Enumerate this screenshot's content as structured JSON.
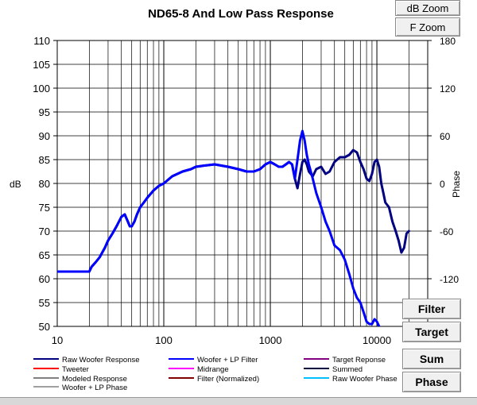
{
  "buttons": {
    "db_zoom": "dB Zoom",
    "f_zoom": "F Zoom",
    "filter": "Filter",
    "target": "Target",
    "sum": "Sum",
    "phase": "Phase"
  },
  "chart_data": {
    "type": "line",
    "title": "ND65-8  And Low Pass Response",
    "xlabel": "",
    "ylabel": "dB",
    "y2label": "Phase",
    "x_scale": "log",
    "xlim": [
      10,
      30000
    ],
    "ylim": [
      50,
      110
    ],
    "y2lim": [
      -180,
      180
    ],
    "grid": true,
    "x_ticks": [
      10,
      100,
      1000,
      10000
    ],
    "x_tick_labels": [
      "10",
      "100",
      "1000",
      "10000"
    ],
    "y_ticks": [
      50,
      55,
      60,
      65,
      70,
      75,
      80,
      85,
      90,
      95,
      100,
      105,
      110
    ],
    "y2_ticks": [
      -120,
      -60,
      0,
      60,
      120,
      180
    ],
    "legend_position": "bottom",
    "colors": {
      "raw_woofer": "#000080",
      "woofer_lp": "#0000ff",
      "target": "#800080",
      "tweeter": "#ff0000",
      "midrange": "#ff00ff",
      "summed": "#000040",
      "modeled": "#808080",
      "filter_norm": "#800000",
      "raw_phase": "#00c0ff",
      "woofer_lp_phase": "#a0a0a0"
    },
    "legend": [
      {
        "name": "Raw Woofer Response",
        "color_key": "raw_woofer"
      },
      {
        "name": "Woofer + LP Filter",
        "color_key": "woofer_lp"
      },
      {
        "name": "Target Reponse",
        "color_key": "target"
      },
      {
        "name": "Tweeter",
        "color_key": "tweeter"
      },
      {
        "name": "Midrange",
        "color_key": "midrange"
      },
      {
        "name": "Summed",
        "color_key": "summed"
      },
      {
        "name": "Modeled Response",
        "color_key": "modeled"
      },
      {
        "name": "Filter (Normalized)",
        "color_key": "filter_norm"
      },
      {
        "name": "Raw Woofer Phase",
        "color_key": "raw_phase"
      },
      {
        "name": "Woofer + LP  Phase",
        "color_key": "woofer_lp_phase"
      }
    ],
    "series": [
      {
        "name": "Raw Woofer Response",
        "color_key": "raw_woofer",
        "width": 3,
        "x": [
          10,
          15,
          20,
          21,
          23,
          25,
          28,
          30,
          33,
          36,
          40,
          43,
          46,
          48,
          50,
          53,
          56,
          60,
          65,
          70,
          80,
          90,
          100,
          120,
          150,
          180,
          200,
          250,
          300,
          400,
          500,
          600,
          700,
          800,
          900,
          1000,
          1100,
          1200,
          1300,
          1400,
          1500,
          1600,
          1700,
          1800,
          1900,
          2000,
          2100,
          2200,
          2300,
          2500,
          2700,
          3000,
          3300,
          3600,
          4000,
          4500,
          5000,
          5500,
          6000,
          6500,
          7000,
          7500,
          8000,
          8500,
          9000,
          9500,
          10000,
          10500,
          11000,
          11500,
          12000,
          13000,
          14000,
          15000,
          16000,
          17000,
          18000,
          19000,
          20000
        ],
        "values": [
          61.5,
          61.5,
          61.5,
          62.5,
          63.5,
          64.5,
          66.5,
          68,
          69.5,
          71,
          73,
          73.5,
          72,
          71,
          71,
          72,
          73.5,
          75,
          76,
          77,
          78.5,
          79.5,
          80,
          81.5,
          82.5,
          83,
          83.5,
          83.8,
          84,
          83.5,
          83,
          82.5,
          82.5,
          83,
          84,
          84.5,
          84,
          83.5,
          83.5,
          84,
          84.5,
          84,
          81,
          79,
          82,
          84.5,
          85,
          84,
          82.5,
          81.5,
          83,
          83.5,
          82,
          82.5,
          84.5,
          85.5,
          85.5,
          86,
          87,
          86.5,
          84.5,
          83,
          81,
          80.5,
          82,
          84.5,
          85,
          83.5,
          80,
          78,
          76,
          75,
          72,
          70,
          68,
          65.5,
          66.5,
          69.5,
          70
        ]
      },
      {
        "name": "Woofer + LP Filter",
        "color_key": "woofer_lp",
        "width": 3,
        "x": [
          10,
          15,
          20,
          21,
          23,
          25,
          28,
          30,
          33,
          36,
          40,
          43,
          46,
          48,
          50,
          53,
          56,
          60,
          65,
          70,
          80,
          90,
          100,
          120,
          150,
          180,
          200,
          250,
          300,
          400,
          500,
          600,
          700,
          800,
          900,
          1000,
          1100,
          1200,
          1300,
          1400,
          1500,
          1600,
          1700,
          1800,
          1900,
          2000,
          2100,
          2200,
          2300,
          2500,
          2700,
          3000,
          3300,
          3600,
          4000,
          4500,
          5000,
          5500,
          6000,
          6500,
          7000,
          7500,
          8000,
          8500,
          9000,
          9500,
          10000,
          10500,
          11000
        ],
        "values": [
          61.5,
          61.5,
          61.5,
          62.5,
          63.5,
          64.5,
          66.5,
          68,
          69.5,
          71,
          73,
          73.5,
          72,
          71,
          71,
          72,
          73.5,
          75,
          76,
          77,
          78.5,
          79.5,
          80,
          81.5,
          82.5,
          83,
          83.5,
          83.8,
          84,
          83.5,
          83,
          82.5,
          82.5,
          83,
          84,
          84.5,
          84,
          83.5,
          83.5,
          84,
          84.5,
          84,
          81,
          85,
          89,
          91,
          89,
          86,
          84,
          81,
          78,
          75,
          72,
          70,
          67,
          66,
          64,
          61,
          58,
          56,
          55,
          53,
          51,
          50.5,
          50.5,
          51.5,
          51,
          50,
          49
        ]
      }
    ]
  }
}
